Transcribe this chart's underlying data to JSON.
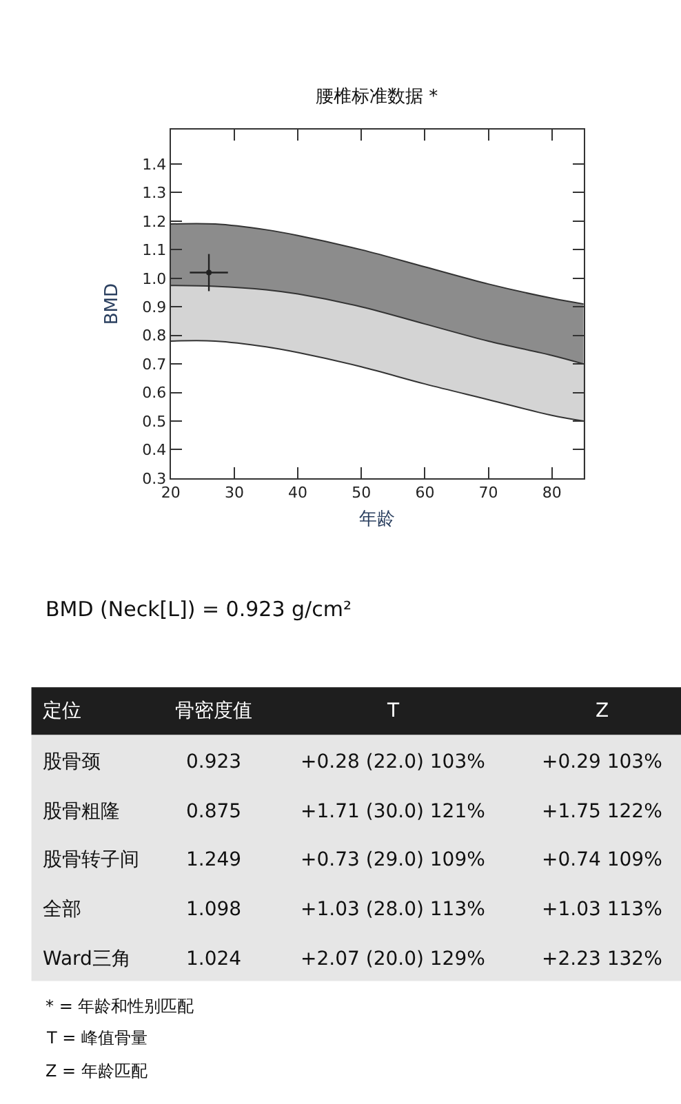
{
  "chart_data": {
    "type": "area",
    "title": "腰椎标准数据 *",
    "xlabel": "年龄",
    "ylabel": "BMD",
    "xlim": [
      20,
      85
    ],
    "xticks": [
      20,
      30,
      40,
      50,
      60,
      70,
      80
    ],
    "ylim": [
      0.3,
      1.52
    ],
    "yticks": [
      0.3,
      0.4,
      0.5,
      0.6,
      0.7,
      0.8,
      0.9,
      {
        "value": 1.0,
        "label": "1.0"
      },
      1.1,
      1.2,
      1.3,
      1.4
    ],
    "x": [
      20,
      27,
      35,
      40,
      50,
      60,
      70,
      80,
      85
    ],
    "series": [
      {
        "color": "#8c8c8c",
        "values": [
          1.19,
          1.19,
          1.17,
          1.15,
          1.1,
          1.04,
          0.98,
          0.93,
          0.91
        ]
      },
      {
        "color": "#d4d4d4",
        "values": [
          0.975,
          0.972,
          0.96,
          0.945,
          0.9,
          0.84,
          0.78,
          0.73,
          0.7
        ]
      },
      {
        "color": "#ffffff",
        "values": [
          0.78,
          0.78,
          0.76,
          0.74,
          0.69,
          0.63,
          0.575,
          0.52,
          0.5
        ]
      },
      {
        "type": "scatter",
        "marker": "circle",
        "color": "#222222",
        "x": [
          26
        ],
        "values": [
          1.02
        ],
        "xerrors": [
          3
        ],
        "errors": [
          0.065
        ]
      }
    ],
    "annotations": [
      "BMD (Neck[L]) = 0.923 g/cm²",
      "定位",
      "骨密度值",
      "T",
      "Z",
      "股骨颈",
      "0.923",
      "+0.28 (22.0) 103%",
      "+0.29 103%",
      "股骨粗隆",
      "0.875",
      "+1.71 (30.0) 121%",
      "+1.75 122%",
      "股骨转子间",
      "1.249",
      "+0.73 (29.0) 109%",
      "+0.74 109%",
      "全部",
      "1.098",
      "+1.03 (28.0) 113%",
      "+1.03 113%",
      "Ward三角",
      "1.024",
      "+2.07 (20.0) 129%",
      "+2.23 132%",
      "* = 年龄和性别匹配",
      "T = 峰值骨量",
      "Z = 年龄匹配"
    ]
  }
}
